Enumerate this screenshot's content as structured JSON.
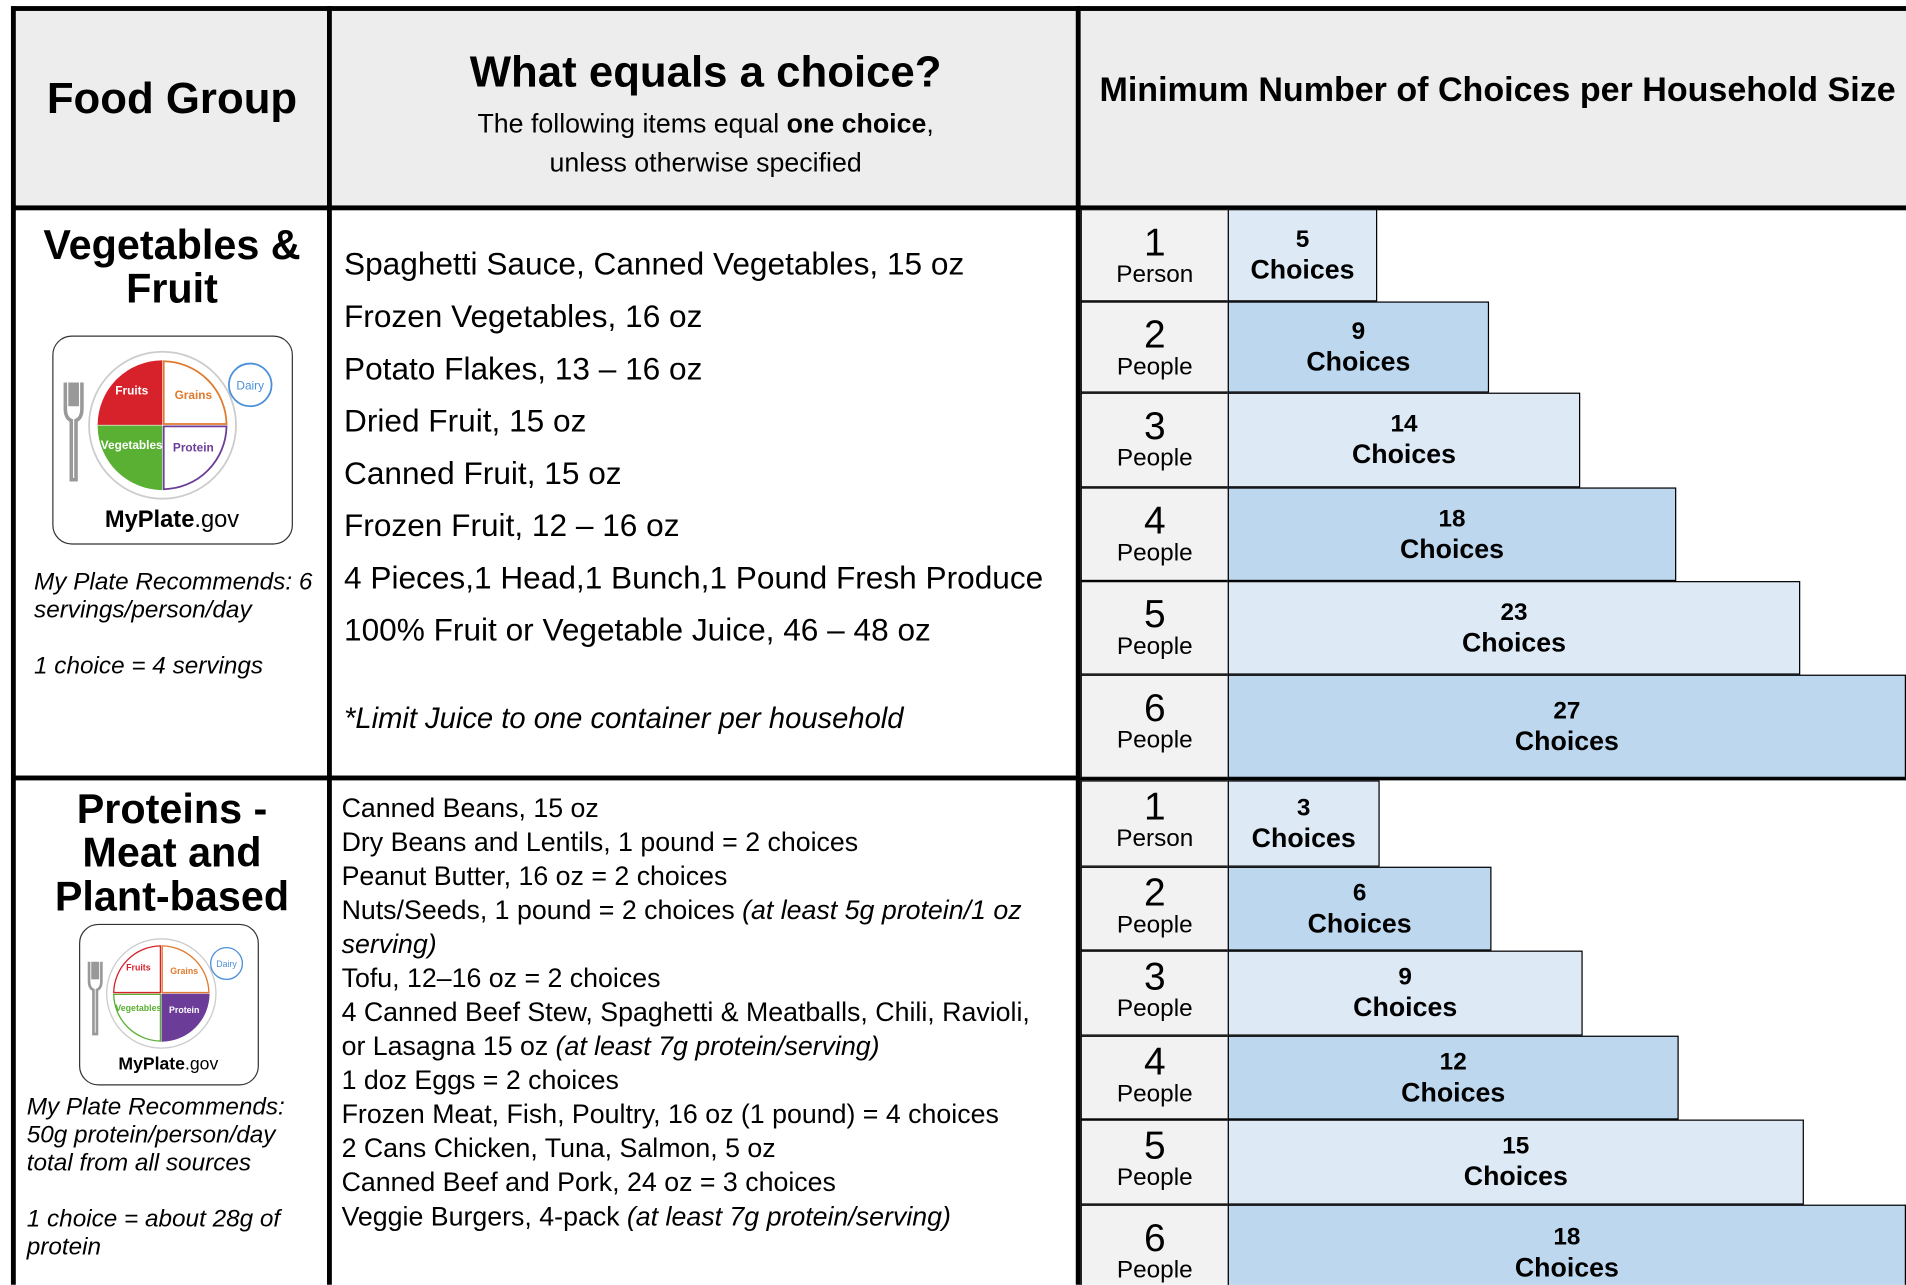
{
  "header": {
    "food_group": "Food Group",
    "choice_title": "What equals a choice?",
    "choice_subtitle_pre": "The following items equal",
    "choice_subtitle_bold": "one choice",
    "choice_subtitle_post": ",",
    "choice_subtitle_line2": "unless otherwise specified",
    "minimum_title": "Minimum Number of Choices per Household Size"
  },
  "logo": {
    "fruits": "Fruits",
    "grains": "Grains",
    "vegetables": "Vegetables",
    "protein": "Protein",
    "dairy": "Dairy",
    "brand": "MyPlate",
    "domain": ".gov"
  },
  "rows": [
    {
      "group": "Vegetables & Fruit",
      "notes": [
        "My Plate Recommends: 6 servings/person/day",
        "1 choice = 4 servings"
      ],
      "items": [
        {
          "text": "Spaghetti Sauce, Canned Vegetables, 15 oz"
        },
        {
          "text": "Frozen Vegetables, 16 oz"
        },
        {
          "text": "Potato Flakes, 13 – 16 oz"
        },
        {
          "text": "Dried Fruit, 15 oz"
        },
        {
          "text": "Canned Fruit, 15 oz"
        },
        {
          "text": "Frozen Fruit, 12 – 16 oz"
        },
        {
          "text": "4 Pieces,1 Head,1 Bunch,1 Pound Fresh Produce"
        },
        {
          "text": "100% Fruit or Vegetable Juice, 46 – 48 oz"
        }
      ],
      "footnote": "*Limit Juice to one container per household",
      "choices": [
        {
          "size": 1,
          "size_label": "Person",
          "choices": 5,
          "choices_label": "Choices"
        },
        {
          "size": 2,
          "size_label": "People",
          "choices": 9,
          "choices_label": "Choices"
        },
        {
          "size": 3,
          "size_label": "People",
          "choices": 14,
          "choices_label": "Choices"
        },
        {
          "size": 4,
          "size_label": "People",
          "choices": 18,
          "choices_label": "Choices"
        },
        {
          "size": 5,
          "size_label": "People",
          "choices": 23,
          "choices_label": "Choices"
        },
        {
          "size": 6,
          "size_label": "People",
          "choices": 27,
          "choices_label": "Choices"
        }
      ]
    },
    {
      "group": "Proteins - Meat and Plant-based",
      "notes": [
        "My Plate Recommends: 50g protein/person/day total from all sources",
        "1 choice = about 28g of protein"
      ],
      "items": [
        {
          "text": "Canned Beans, 15 oz"
        },
        {
          "text": "Dry Beans and Lentils, 1 pound = 2 choices"
        },
        {
          "text": "Peanut Butter, 16 oz = 2 choices"
        },
        {
          "text": "Nuts/Seeds, 1 pound = 2 choices",
          "note": "(at least 5g protein/1 oz serving)"
        },
        {
          "text": "Tofu, 12–16 oz = 2 choices"
        },
        {
          "text": "4 Canned Beef Stew, Spaghetti & Meatballs, Chili, Ravioli, or Lasagna 15 oz",
          "note": "(at least 7g protein/serving)"
        },
        {
          "text": "1 doz Eggs = 2 choices"
        },
        {
          "text": "Frozen Meat, Fish, Poultry, 16 oz (1 pound) = 4 choices"
        },
        {
          "text": "2 Cans Chicken, Tuna, Salmon, 5 oz"
        },
        {
          "text": "Canned Beef and Pork, 24 oz = 3 choices"
        },
        {
          "text": "Veggie Burgers, 4-pack",
          "note": "(at least 7g protein/serving)"
        }
      ],
      "choices": [
        {
          "size": 1,
          "size_label": "Person",
          "choices": 3,
          "choices_label": "Choices"
        },
        {
          "size": 2,
          "size_label": "People",
          "choices": 6,
          "choices_label": "Choices"
        },
        {
          "size": 3,
          "size_label": "People",
          "choices": 9,
          "choices_label": "Choices"
        },
        {
          "size": 4,
          "size_label": "People",
          "choices": 12,
          "choices_label": "Choices"
        },
        {
          "size": 5,
          "size_label": "People",
          "choices": 15,
          "choices_label": "Choices"
        },
        {
          "size": 6,
          "size_label": "People",
          "choices": 18,
          "choices_label": "Choices"
        }
      ]
    }
  ]
}
